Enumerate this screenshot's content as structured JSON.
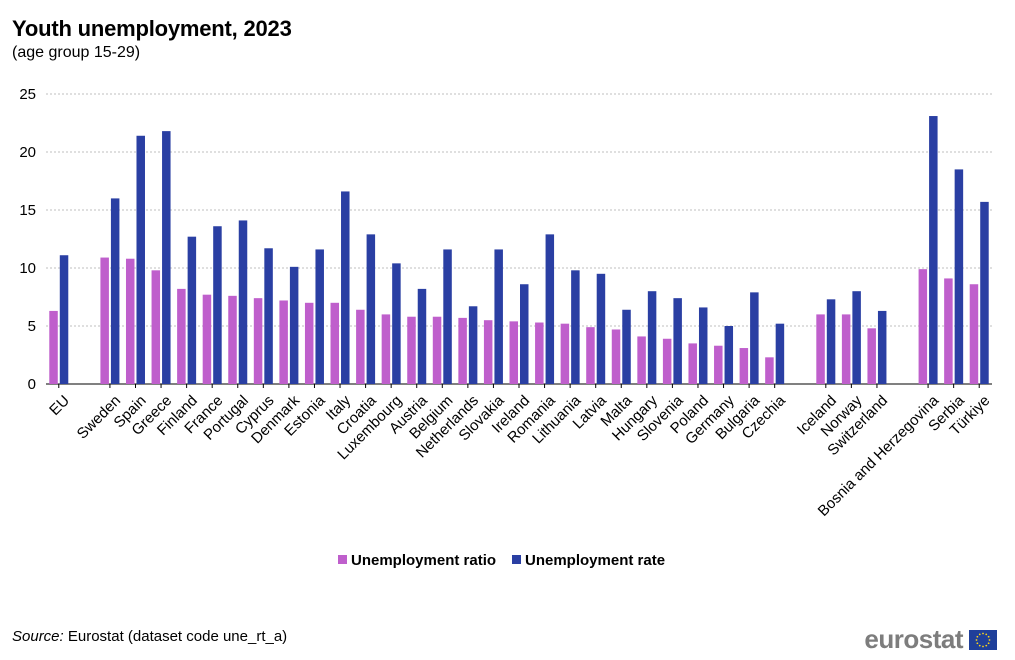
{
  "header": {
    "title": "Youth unemployment, 2023",
    "subtitle": "(age group 15-29)"
  },
  "footer": {
    "source_label": "Source:",
    "source_text": " Eurostat (dataset code une_rt_a)",
    "logo_text": "eurostat"
  },
  "colors": {
    "ratio": "#bf5fcc",
    "rate": "#2a3fa3",
    "grid": "#bfbfbf",
    "flag_blue": "#1f3f9a",
    "flag_star": "#f7d21c"
  },
  "chart_data": {
    "type": "bar",
    "ylim": [
      0,
      25
    ],
    "yticks": [
      0,
      5,
      10,
      15,
      20,
      25
    ],
    "grid": true,
    "legend_position": "bottom",
    "categories": [
      "EU",
      "",
      "Sweden",
      "Spain",
      "Greece",
      "Finland",
      "France",
      "Portugal",
      "Cyprus",
      "Denmark",
      "Estonia",
      "Italy",
      "Croatia",
      "Luxembourg",
      "Austria",
      "Belgium",
      "Netherlands",
      "Slovakia",
      "Ireland",
      "Romania",
      "Lithuania",
      "Latvia",
      "Malta",
      "Hungary",
      "Slovenia",
      "Poland",
      "Germany",
      "Bulgaria",
      "Czechia",
      "",
      "Iceland",
      "Norway",
      "Switzerland",
      "",
      "Bosnia and Herzegovina",
      "Serbia",
      "Türkiye"
    ],
    "series": [
      {
        "name": "Unemployment ratio",
        "values": [
          6.3,
          null,
          10.9,
          10.8,
          9.8,
          8.2,
          7.7,
          7.6,
          7.4,
          7.2,
          7.0,
          7.0,
          6.4,
          6.0,
          5.8,
          5.8,
          5.7,
          5.5,
          5.4,
          5.3,
          5.2,
          4.9,
          4.7,
          4.1,
          3.9,
          3.5,
          3.3,
          3.1,
          2.3,
          null,
          6.0,
          6.0,
          4.8,
          null,
          9.9,
          9.1,
          8.6
        ]
      },
      {
        "name": "Unemployment rate",
        "values": [
          11.1,
          null,
          16.0,
          21.4,
          21.8,
          12.7,
          13.6,
          14.1,
          11.7,
          10.1,
          11.6,
          16.6,
          12.9,
          10.4,
          8.2,
          11.6,
          6.7,
          11.6,
          8.6,
          12.9,
          9.8,
          9.5,
          6.4,
          8.0,
          7.4,
          6.6,
          5.0,
          7.9,
          5.2,
          null,
          7.3,
          8.0,
          6.3,
          null,
          23.1,
          18.5,
          15.7
        ]
      }
    ]
  }
}
